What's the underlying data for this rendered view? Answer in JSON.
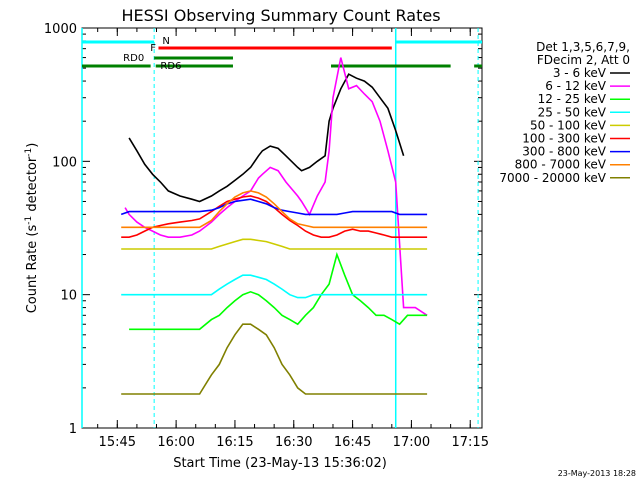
{
  "chart_data": {
    "type": "line",
    "title": "HESSI Observing Summary Count Rates",
    "xlabel": "Start Time (23-May-13 15:36:02)",
    "ylabel": "Count Rate (s",
    "ylabel_sup1": "-1",
    "ylabel_mid": " detector",
    "ylabel_sup2": "-1",
    "ylabel_end": ")",
    "yscale": "log",
    "ylim": [
      1,
      1000
    ],
    "xlim_minutes": [
      0,
      102
    ],
    "x_tick_labels": [
      "15:45",
      "16:00",
      "16:15",
      "16:30",
      "16:45",
      "17:00",
      "17:15"
    ],
    "y_tick_labels": [
      "1",
      "10",
      "100",
      "1000"
    ],
    "legend_header": [
      "Det 1,3,5,6,7,9,",
      "FDecim 2, Att 0"
    ],
    "legend_placement": "right",
    "footer_date": "23-May-2013 18:28",
    "flags": {
      "N_label": "N",
      "F_label": "F",
      "RD0_label": "RD0",
      "RD6_label": "RD6"
    },
    "series": [
      {
        "name": "3 - 6 keV",
        "color": "#000000",
        "x": [
          6,
          10,
          11,
          12,
          14,
          16,
          18,
          20,
          22,
          25,
          28,
          30,
          33,
          35,
          37,
          39,
          41,
          43,
          45,
          46,
          48,
          50,
          52,
          55,
          56,
          58,
          60,
          62,
          63,
          64,
          66,
          68,
          70,
          72,
          74,
          76,
          78,
          80,
          82
        ],
        "values": [
          0,
          0,
          0,
          150,
          120,
          95,
          80,
          70,
          60,
          55,
          52,
          50,
          55,
          60,
          65,
          72,
          80,
          90,
          110,
          120,
          130,
          125,
          110,
          90,
          85,
          90,
          100,
          110,
          200,
          250,
          350,
          450,
          420,
          400,
          360,
          300,
          250,
          170,
          110
        ]
      },
      {
        "name": "6 - 12 keV",
        "color": "#ff00ff",
        "x": [
          11,
          12,
          14,
          16,
          18,
          20,
          22,
          25,
          28,
          30,
          33,
          35,
          37,
          39,
          41,
          43,
          45,
          46,
          48,
          50,
          52,
          55,
          56,
          58,
          60,
          62,
          63,
          64,
          66,
          68,
          70,
          72,
          74,
          76,
          78,
          80,
          82,
          85,
          88
        ],
        "values": [
          45,
          40,
          35,
          32,
          30,
          28,
          27,
          27,
          28,
          30,
          35,
          40,
          45,
          50,
          55,
          60,
          75,
          80,
          90,
          85,
          70,
          55,
          50,
          40,
          55,
          70,
          120,
          300,
          600,
          350,
          370,
          320,
          280,
          200,
          120,
          70,
          8,
          8,
          7
        ]
      },
      {
        "name": "12 - 25 keV",
        "color": "#00ff00",
        "x": [
          6,
          10,
          12,
          14,
          16,
          18,
          20,
          22,
          25,
          28,
          30,
          33,
          35,
          37,
          39,
          41,
          43,
          45,
          47,
          49,
          51,
          53,
          55,
          57,
          59,
          61,
          63,
          65,
          67,
          69,
          71,
          73,
          75,
          77,
          79,
          81,
          83,
          85,
          88
        ],
        "values": [
          0,
          0,
          5.5,
          5.5,
          5.5,
          5.5,
          5.5,
          5.5,
          5.5,
          5.5,
          5.5,
          6.5,
          7,
          8,
          9,
          10,
          10.5,
          10,
          9,
          8,
          7,
          6.5,
          6,
          7,
          8,
          10,
          12,
          20,
          14,
          10,
          9,
          8,
          7,
          7,
          6.5,
          6,
          7,
          7,
          7
        ]
      },
      {
        "name": "25 - 50 keV",
        "color": "#00ffff",
        "x": [
          10,
          12,
          14,
          16,
          18,
          20,
          22,
          25,
          28,
          30,
          33,
          35,
          37,
          39,
          41,
          43,
          45,
          47,
          49,
          51,
          53,
          55,
          57,
          59,
          61,
          63,
          65,
          67,
          69,
          71,
          73,
          75,
          77,
          79,
          81,
          83,
          85,
          88
        ],
        "values": [
          10,
          10,
          10,
          10,
          10,
          10,
          10,
          10,
          10,
          10,
          10,
          11,
          12,
          13,
          14,
          14,
          13.5,
          13,
          12,
          11,
          10,
          9.5,
          9.5,
          10,
          10,
          10,
          10,
          10,
          10,
          10,
          10,
          10,
          10,
          10,
          10,
          10,
          10,
          10
        ]
      },
      {
        "name": "50 - 100 keV",
        "color": "#cccc00",
        "x": [
          10,
          12,
          14,
          16,
          18,
          20,
          22,
          25,
          28,
          30,
          33,
          35,
          37,
          39,
          41,
          43,
          45,
          47,
          49,
          51,
          53,
          55,
          57,
          59,
          61,
          63,
          65,
          67,
          69,
          71,
          73,
          75,
          77,
          79,
          81,
          83,
          85,
          88
        ],
        "values": [
          22,
          22,
          22,
          22,
          22,
          22,
          22,
          22,
          22,
          22,
          22,
          23,
          24,
          25,
          26,
          26,
          25.5,
          25,
          24,
          23,
          22,
          22,
          22,
          22,
          22,
          22,
          22,
          22,
          22,
          22,
          22,
          22,
          22,
          22,
          22,
          22,
          22,
          22
        ]
      },
      {
        "name": "100 - 300 keV",
        "color": "#ff0000",
        "x": [
          10,
          12,
          14,
          16,
          18,
          20,
          22,
          25,
          28,
          30,
          33,
          35,
          37,
          39,
          41,
          43,
          45,
          47,
          49,
          51,
          53,
          55,
          57,
          59,
          61,
          63,
          65,
          67,
          69,
          71,
          73,
          75,
          77,
          79,
          81,
          83,
          85,
          88
        ],
        "values": [
          27,
          27,
          28,
          30,
          32,
          33,
          34,
          35,
          36,
          37,
          42,
          46,
          50,
          52,
          54,
          55,
          53,
          50,
          45,
          40,
          36,
          33,
          30,
          28,
          27,
          27,
          28,
          30,
          31,
          30,
          30,
          29,
          28,
          27,
          27,
          27,
          27,
          27
        ]
      },
      {
        "name": "300 - 800 keV",
        "color": "#0000ff",
        "x": [
          10,
          12,
          14,
          16,
          18,
          20,
          22,
          25,
          28,
          30,
          33,
          35,
          37,
          39,
          41,
          43,
          45,
          47,
          49,
          51,
          53,
          55,
          57,
          59,
          61,
          63,
          65,
          67,
          69,
          71,
          73,
          75,
          77,
          79,
          81,
          83,
          85,
          88
        ],
        "values": [
          40,
          42,
          42,
          42,
          42,
          42,
          42,
          42,
          42,
          42,
          43,
          45,
          48,
          50,
          51,
          52,
          50,
          48,
          45,
          43,
          42,
          41,
          40,
          40,
          40,
          40,
          40,
          41,
          42,
          42,
          42,
          42,
          42,
          42,
          40,
          40,
          40,
          40
        ]
      },
      {
        "name": "800 - 7000 keV",
        "color": "#ff8000",
        "x": [
          10,
          12,
          14,
          16,
          18,
          20,
          22,
          25,
          28,
          30,
          33,
          35,
          37,
          39,
          41,
          43,
          45,
          47,
          49,
          51,
          53,
          55,
          57,
          59,
          61,
          63,
          65,
          67,
          69,
          71,
          73,
          75,
          77,
          79,
          81,
          83,
          85,
          88
        ],
        "values": [
          32,
          32,
          32,
          32,
          32,
          32,
          32,
          32,
          32,
          32,
          36,
          42,
          48,
          54,
          58,
          60,
          58,
          54,
          48,
          42,
          37,
          34,
          33,
          32,
          32,
          32,
          32,
          32,
          32,
          32,
          32,
          32,
          32,
          32,
          32,
          32,
          32,
          32
        ]
      },
      {
        "name": "7000 - 20000 keV",
        "color": "#808000",
        "x": [
          10,
          12,
          14,
          16,
          18,
          20,
          22,
          25,
          28,
          30,
          33,
          35,
          37,
          39,
          41,
          43,
          45,
          47,
          49,
          51,
          53,
          55,
          57,
          59,
          61,
          63,
          65,
          67,
          69,
          71,
          73,
          75,
          77,
          79,
          81,
          83,
          85,
          88
        ],
        "values": [
          1.8,
          1.8,
          1.8,
          1.8,
          1.8,
          1.8,
          1.8,
          1.8,
          1.8,
          1.8,
          2.5,
          3,
          4,
          5,
          6,
          6,
          5.5,
          5,
          4,
          3,
          2.5,
          2,
          1.8,
          1.8,
          1.8,
          1.8,
          1.8,
          1.8,
          1.8,
          1.8,
          1.8,
          1.8,
          1.8,
          1.8,
          1.8,
          1.8,
          1.8,
          1.8
        ]
      }
    ]
  }
}
